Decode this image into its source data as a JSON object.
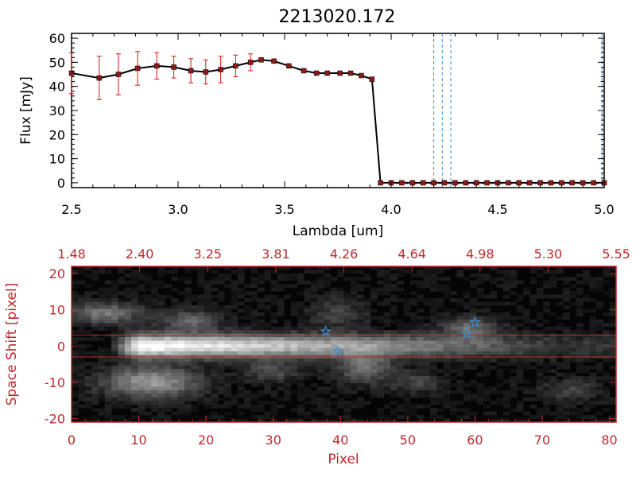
{
  "title": "2213020.172",
  "chart_data": [
    {
      "type": "line",
      "xlabel": "Lambda [um]",
      "ylabel": "Flux [mJy]",
      "xlim": [
        2.5,
        5.0
      ],
      "ylim": [
        -2,
        62
      ],
      "x_ticks": [
        "2.5",
        "3.0",
        "3.5",
        "4.0",
        "4.5",
        "5.0"
      ],
      "y_ticks": [
        "0",
        "10",
        "20",
        "30",
        "40",
        "50",
        "60"
      ],
      "grid": false,
      "series": [
        {
          "color": "#000000",
          "marker_color": "#8b1a1a",
          "x": [
            2.5,
            2.63,
            2.72,
            2.81,
            2.9,
            2.98,
            3.06,
            3.13,
            3.2,
            3.27,
            3.34,
            3.39,
            3.45,
            3.52,
            3.59,
            3.65,
            3.7,
            3.76,
            3.81,
            3.86,
            3.91,
            3.95,
            4.0,
            4.05,
            4.1,
            4.15,
            4.2,
            4.25,
            4.3,
            4.35,
            4.4,
            4.45,
            4.5,
            4.55,
            4.6,
            4.65,
            4.7,
            4.75,
            4.8,
            4.85,
            4.9,
            4.95,
            5.0
          ],
          "y": [
            45.5,
            43.5,
            45.0,
            47.5,
            48.5,
            48.0,
            46.5,
            46.0,
            47.0,
            48.5,
            50.0,
            51.0,
            50.5,
            48.5,
            46.5,
            45.5,
            45.5,
            45.5,
            45.5,
            44.5,
            43.0,
            0,
            0,
            0,
            0,
            0,
            0,
            0,
            0,
            0,
            0,
            0,
            0,
            0,
            0,
            0,
            0,
            0,
            0,
            0,
            0,
            0,
            0
          ],
          "yerr": [
            8.5,
            9.0,
            8.5,
            7.0,
            5.5,
            4.5,
            5.0,
            5.0,
            5.5,
            4.5,
            3.5,
            0,
            0,
            0,
            0,
            0,
            0,
            0,
            0,
            0,
            0,
            0,
            0,
            0,
            0,
            0,
            0,
            0,
            0,
            0,
            0,
            0,
            0,
            0,
            0,
            0,
            0,
            0,
            0,
            0,
            0,
            0,
            0
          ]
        }
      ],
      "vlines": [
        4.2,
        4.24,
        4.28,
        4.99
      ],
      "vline_color": "#3a8fd8"
    },
    {
      "type": "heatmap",
      "xlabel": "Pixel",
      "ylabel": "Space Shift [pixel]",
      "xlim": [
        0,
        81
      ],
      "ylim": [
        -21,
        22
      ],
      "x_ticks": [
        "0",
        "10",
        "20",
        "30",
        "40",
        "50",
        "60",
        "70",
        "80"
      ],
      "y_ticks": [
        "-20",
        "-10",
        "0",
        "10",
        "20"
      ],
      "top_ticks": [
        "1.48",
        "2.40",
        "3.25",
        "3.81",
        "4.26",
        "4.64",
        "4.98",
        "5.30",
        "5.55"
      ],
      "axis_color": "#c0282d",
      "hlines": [
        3,
        -3
      ],
      "stars": [
        {
          "x": 37.8,
          "y": 4
        },
        {
          "x": 39.6,
          "y": -1.5
        },
        {
          "x": 58.8,
          "y": 3.5
        },
        {
          "x": 60.0,
          "y": 6.5
        }
      ],
      "star_color": "#3a8fd8"
    }
  ]
}
